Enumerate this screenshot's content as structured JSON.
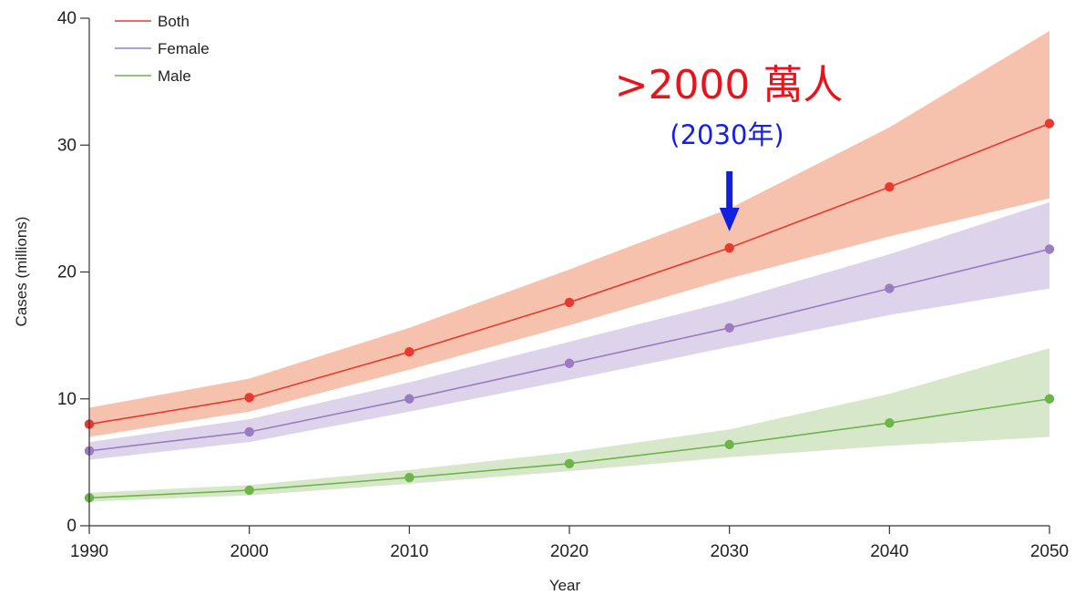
{
  "chart_data": {
    "type": "line",
    "xlabel": "Year",
    "ylabel": "Cases (millions)",
    "xlim": [
      1990,
      2050
    ],
    "ylim": [
      0,
      40
    ],
    "x_ticks": [
      1990,
      2000,
      2010,
      2020,
      2030,
      2040,
      2050
    ],
    "y_ticks": [
      0,
      10,
      20,
      30,
      40
    ],
    "grid": false,
    "legend": "top-left",
    "x": [
      1990,
      2000,
      2010,
      2020,
      2030,
      2040,
      2050
    ],
    "series": [
      {
        "name": "Both",
        "color": "#e8392c",
        "band_color": "#f6c2ad",
        "values": [
          8.0,
          10.1,
          13.7,
          17.6,
          21.9,
          26.7,
          31.7
        ],
        "lower": [
          7.0,
          9.0,
          12.3,
          15.8,
          19.5,
          22.8,
          25.8
        ],
        "upper": [
          9.3,
          11.6,
          15.6,
          20.2,
          25.0,
          31.4,
          39.0
        ]
      },
      {
        "name": "Female",
        "color": "#9a7cc0",
        "band_color": "#ddd3ea",
        "values": [
          5.9,
          7.4,
          10.0,
          12.8,
          15.6,
          18.7,
          21.8
        ],
        "lower": [
          5.2,
          6.6,
          9.0,
          11.5,
          14.1,
          16.6,
          18.7
        ],
        "upper": [
          6.6,
          8.4,
          11.3,
          14.5,
          17.7,
          21.4,
          25.5
        ]
      },
      {
        "name": "Male",
        "color": "#6db54a",
        "band_color": "#d7e8ca",
        "values": [
          2.2,
          2.8,
          3.8,
          4.9,
          6.4,
          8.1,
          10.0
        ],
        "lower": [
          1.9,
          2.4,
          3.3,
          4.3,
          5.4,
          6.3,
          7.0
        ],
        "upper": [
          2.6,
          3.2,
          4.4,
          5.8,
          7.6,
          10.4,
          14.0
        ]
      }
    ],
    "annotation": {
      "text": ">2000 萬人",
      "subtext": "(2030年)",
      "text_color": "#e8141c",
      "subtext_color": "#1420e8",
      "arrow_color": "#1020e0",
      "x": 2030
    }
  }
}
